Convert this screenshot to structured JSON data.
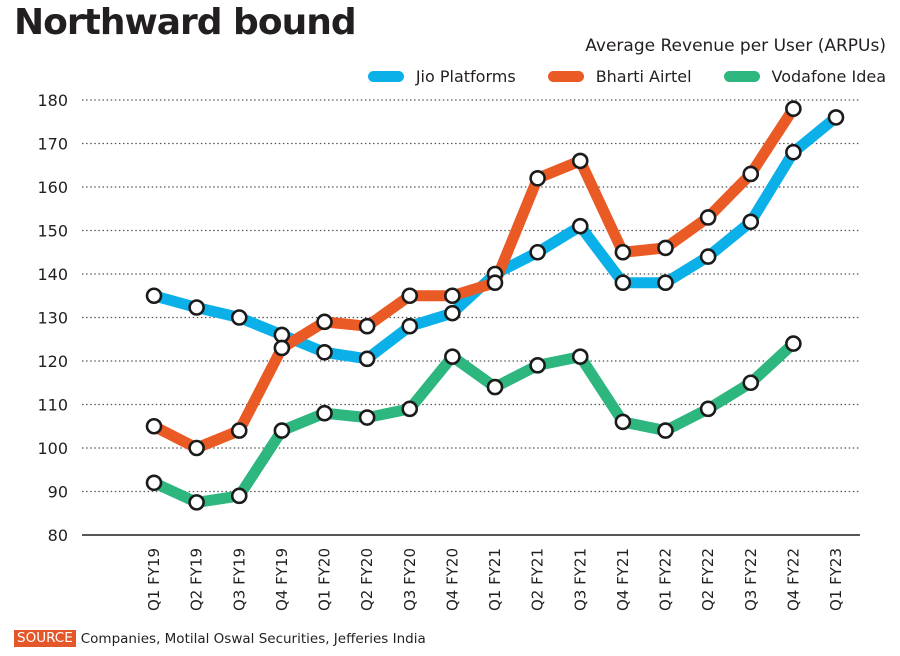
{
  "title": "Northward bound",
  "source": {
    "tag": "SOURCE",
    "text": "Companies, Motilal Oswal Securities, Jefferies India"
  },
  "colors": {
    "jio": "#0bb0e8",
    "airtel": "#ea5a24",
    "vodafone": "#2eb67f",
    "text": "#231f20",
    "grid": "#555555"
  },
  "chart_data": {
    "type": "line",
    "title": "Northward bound",
    "subtitle": "Average  Revenue per User (ARPUs)",
    "xlabel": "",
    "ylabel": "",
    "ylim": [
      80,
      180
    ],
    "yticks": [
      80,
      90,
      100,
      110,
      120,
      130,
      140,
      150,
      160,
      170,
      180
    ],
    "grid": true,
    "legend_position": "top-right",
    "categories": [
      "Q1 FY19",
      "Q2 FY19",
      "Q3 FY19",
      "Q4 FY19",
      "Q1 FY20",
      "Q2 FY20",
      "Q3 FY20",
      "Q4 FY20",
      "Q1 FY21",
      "Q2 FY21",
      "Q3 FY21",
      "Q4 FY21",
      "Q1 FY22",
      "Q2 FY22",
      "Q3 FY22",
      "Q4 FY22",
      "Q1 FY23"
    ],
    "series": [
      {
        "key": "jio",
        "name": "Jio Platforms",
        "color": "#0bb0e8",
        "values": [
          135,
          132.3,
          130,
          126,
          122,
          120.5,
          128,
          131,
          140,
          145,
          151,
          138,
          138,
          144,
          152,
          168,
          176
        ]
      },
      {
        "key": "airtel",
        "name": "Bharti Airtel",
        "color": "#ea5a24",
        "values": [
          105,
          100,
          104,
          123,
          129,
          128,
          135,
          135,
          138,
          162,
          166,
          145,
          146,
          153,
          163,
          178,
          null
        ]
      },
      {
        "key": "vodafone",
        "name": "Vodafone Idea",
        "color": "#2eb67f",
        "values": [
          92,
          87.5,
          89,
          104,
          108,
          107,
          109,
          121,
          114,
          119,
          121,
          106,
          104,
          109,
          115,
          124,
          null
        ]
      }
    ]
  }
}
